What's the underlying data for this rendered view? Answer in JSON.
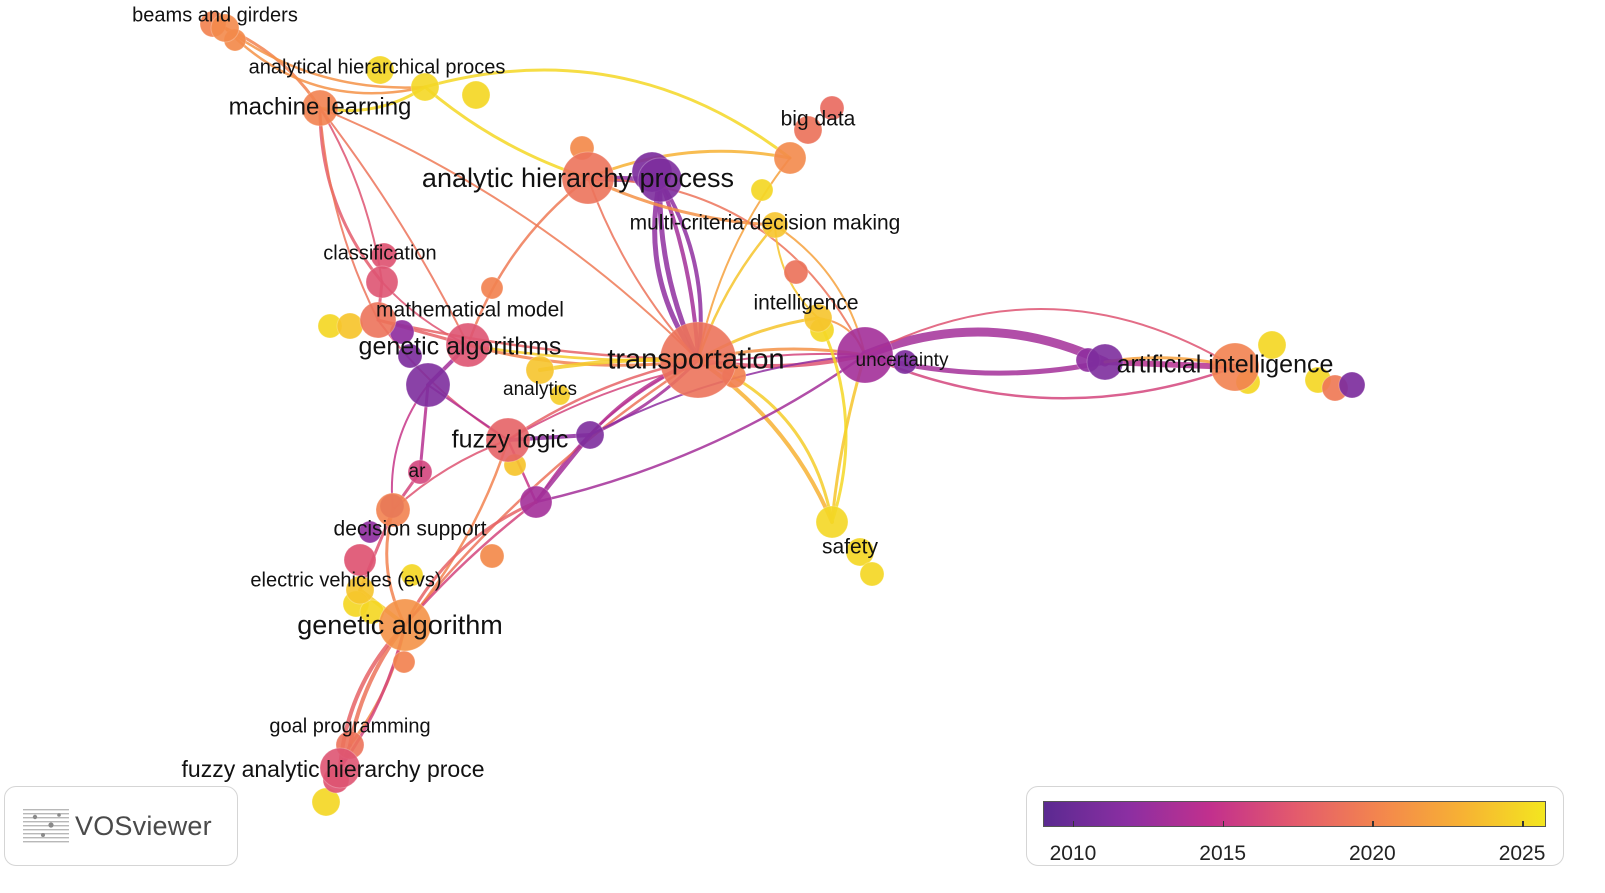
{
  "app": {
    "brand": "VOSviewer",
    "logo_icon": "vosviewer-logo-icon"
  },
  "legend": {
    "type": "overlay-timeline",
    "ticks": [
      {
        "label": "2010",
        "value": 2010
      },
      {
        "label": "2015",
        "value": 2015
      },
      {
        "label": "2020",
        "value": 2020
      },
      {
        "label": "2025",
        "value": 2025
      }
    ],
    "range": [
      2009,
      2025.8
    ],
    "gradient": [
      "#5b2a91",
      "#8b2fa2",
      "#c2308d",
      "#e35a6d",
      "#f3854e",
      "#f7b134",
      "#f3e61f"
    ]
  },
  "network": {
    "nodes": [
      {
        "id": "beams_and_girders",
        "label": "beams and girders",
        "year": 2020.5
      },
      {
        "id": "analytical_hierarchical_proces",
        "label": "analytical hierarchical proces",
        "year": 2025
      },
      {
        "id": "machine_learning",
        "label": "machine learning",
        "year": 2020
      },
      {
        "id": "analytic_hierarchy_process",
        "label": "analytic hierarchy process",
        "year": 2019
      },
      {
        "id": "ahp_hub",
        "label": "",
        "year": 2011
      },
      {
        "id": "big_data",
        "label": "big data",
        "year": 2020.5
      },
      {
        "id": "multi_criteria_decision_making",
        "label": "multi-criteria decision making",
        "year": 2024
      },
      {
        "id": "classification",
        "label": "classification",
        "year": 2017
      },
      {
        "id": "intelligence",
        "label": "intelligence",
        "year": 2024
      },
      {
        "id": "mathematical_model",
        "label": "mathematical model",
        "year": 2019
      },
      {
        "id": "genetic_algorithms",
        "label": "genetic algorithms",
        "year": 2017
      },
      {
        "id": "ga_hub",
        "label": "",
        "year": 2011
      },
      {
        "id": "transportation",
        "label": "transportation",
        "year": 2019
      },
      {
        "id": "uncertainty",
        "label": "uncertainty",
        "year": 2013
      },
      {
        "id": "ai_hub",
        "label": "",
        "year": 2011
      },
      {
        "id": "artificial_intelligence",
        "label": "artificial intelligence",
        "year": 2020
      },
      {
        "id": "analytics",
        "label": "analytics",
        "year": 2024
      },
      {
        "id": "fl_hub",
        "label": "",
        "year": 2011
      },
      {
        "id": "fuzzy_logic",
        "label": "fuzzy logic",
        "year": 2018
      },
      {
        "id": "sub_hub",
        "label": "",
        "year": 2013
      },
      {
        "id": "ar",
        "label": "ar",
        "year": 2016
      },
      {
        "id": "decision_support",
        "label": "decision support",
        "year": 2020
      },
      {
        "id": "electric_vehicles",
        "label": "electric vehicles (evs)",
        "year": 2024
      },
      {
        "id": "safety",
        "label": "safety",
        "year": 2025
      },
      {
        "id": "genetic_algorithm",
        "label": "genetic algorithm",
        "year": 2021
      },
      {
        "id": "goal_programming",
        "label": "goal programming",
        "year": 2019
      },
      {
        "id": "fuzzy_ahp",
        "label": "fuzzy analytic hierarchy proce",
        "year": 2017
      }
    ]
  }
}
